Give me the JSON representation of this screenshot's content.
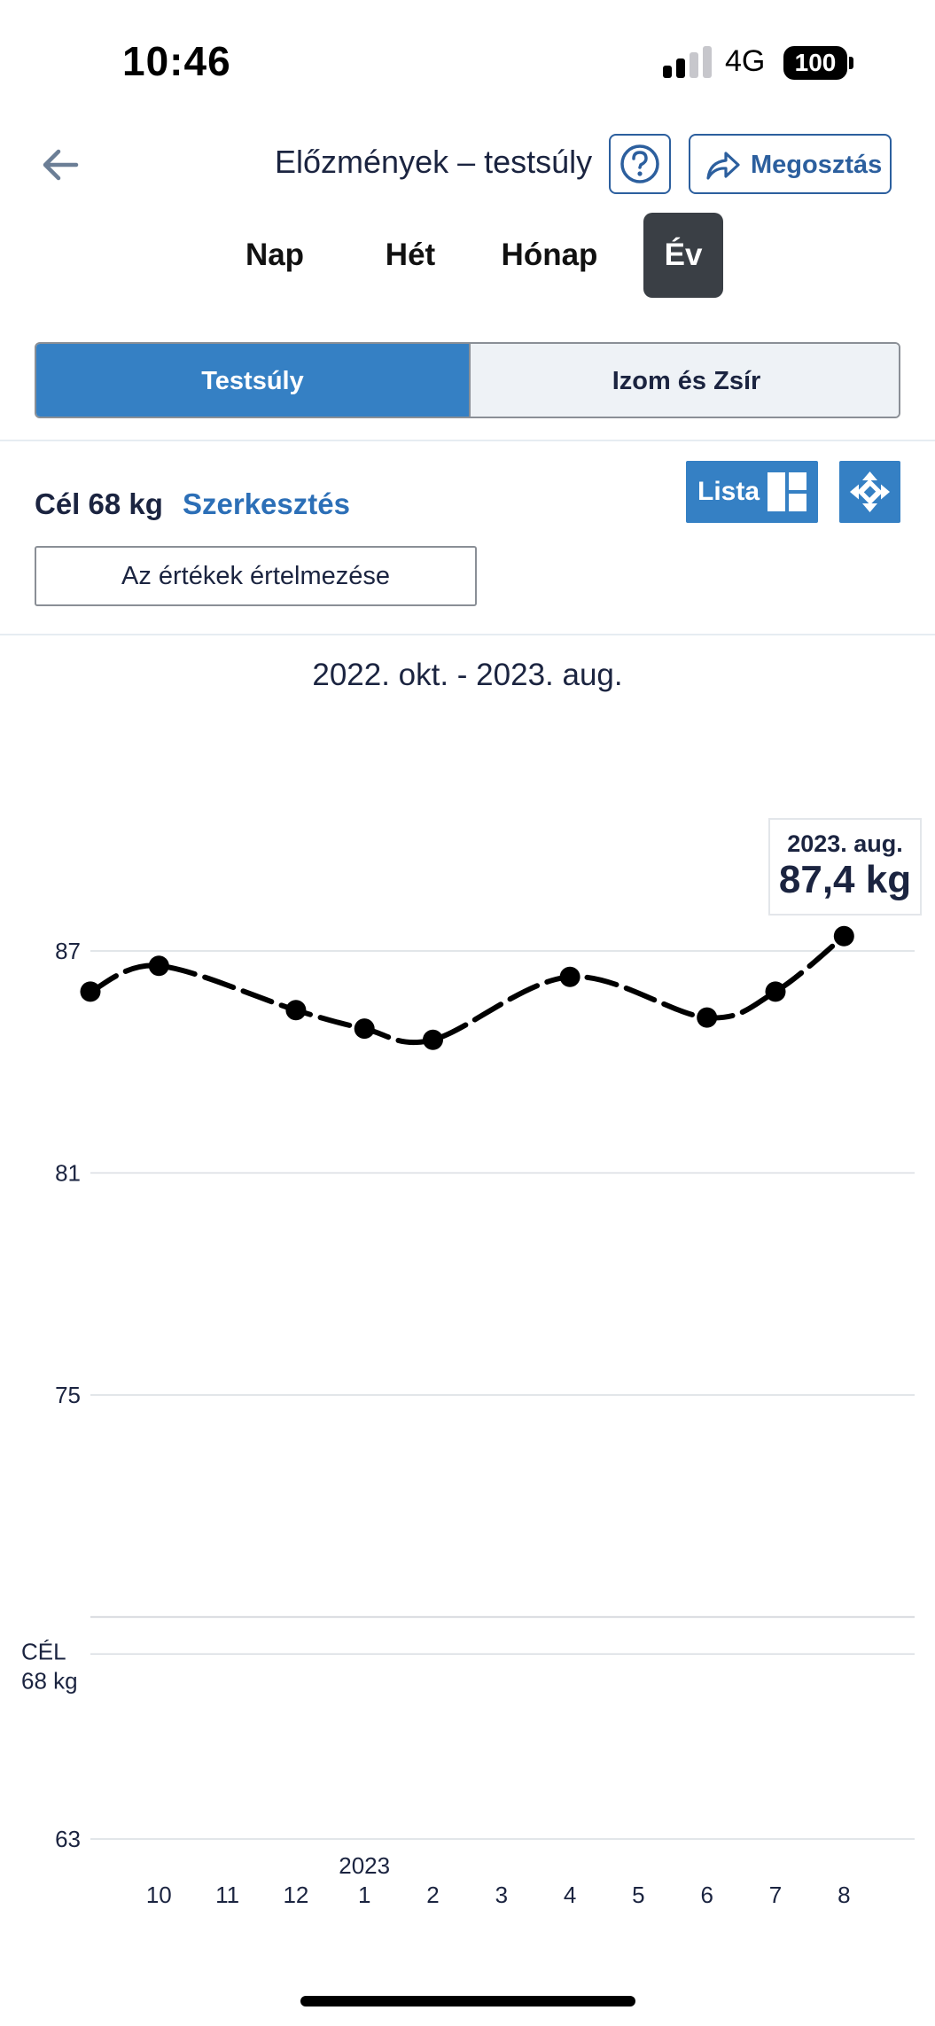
{
  "status_bar": {
    "time": "10:46",
    "network": "4G",
    "battery": "100"
  },
  "header": {
    "back_icon": "arrow-left-icon",
    "title": "Előzmények – testsúly",
    "help_icon": "question-circle-icon",
    "share_icon": "share-arrow-icon",
    "share_label": "Megosztás"
  },
  "period_tabs": [
    {
      "label": "Nap",
      "active": false
    },
    {
      "label": "Hét",
      "active": false
    },
    {
      "label": "Hónap",
      "active": false
    },
    {
      "label": "Év",
      "active": true
    }
  ],
  "segments": [
    {
      "label": "Testsúly",
      "active": true
    },
    {
      "label": "Izom és Zsír",
      "active": false
    }
  ],
  "goal": {
    "label": "Cél 68 kg",
    "edit_label": "Szerkesztés"
  },
  "toolbar": {
    "list_label": "Lista",
    "list_icon": "grid-layout-icon",
    "expand_icon": "move-arrows-icon"
  },
  "explain_button": "Az értékek értelmezése",
  "date_range": "2022. okt. - 2023. aug.",
  "tooltip": {
    "date": "2023. aug.",
    "value": "87,4 kg"
  },
  "colors": {
    "accent": "#3580c4",
    "link": "#2c6fb7",
    "tab_active": "#3a3f45",
    "text": "#1b2440"
  },
  "chart_data": {
    "type": "line",
    "x": [
      "9",
      "10",
      "11",
      "12",
      "1",
      "2",
      "3",
      "4",
      "5",
      "6",
      "7",
      "8"
    ],
    "x_tick_labels": [
      "10",
      "11",
      "12",
      "1",
      "2",
      "3",
      "4",
      "5",
      "6",
      "7",
      "8"
    ],
    "year_marker": {
      "label": "2023",
      "at": "1"
    },
    "y_ticks": [
      87,
      81,
      75,
      63
    ],
    "ylim": [
      63,
      87.6
    ],
    "goal_line": {
      "value": 68,
      "label_top": "CÉL",
      "label_bottom": "68 kg"
    },
    "extra_gridline": 69,
    "series": [
      {
        "values": [
          85.9,
          86.6,
          null,
          85.4,
          84.9,
          84.6,
          null,
          86.3,
          null,
          85.2,
          85.9,
          87.4
        ]
      }
    ],
    "grid": true
  }
}
